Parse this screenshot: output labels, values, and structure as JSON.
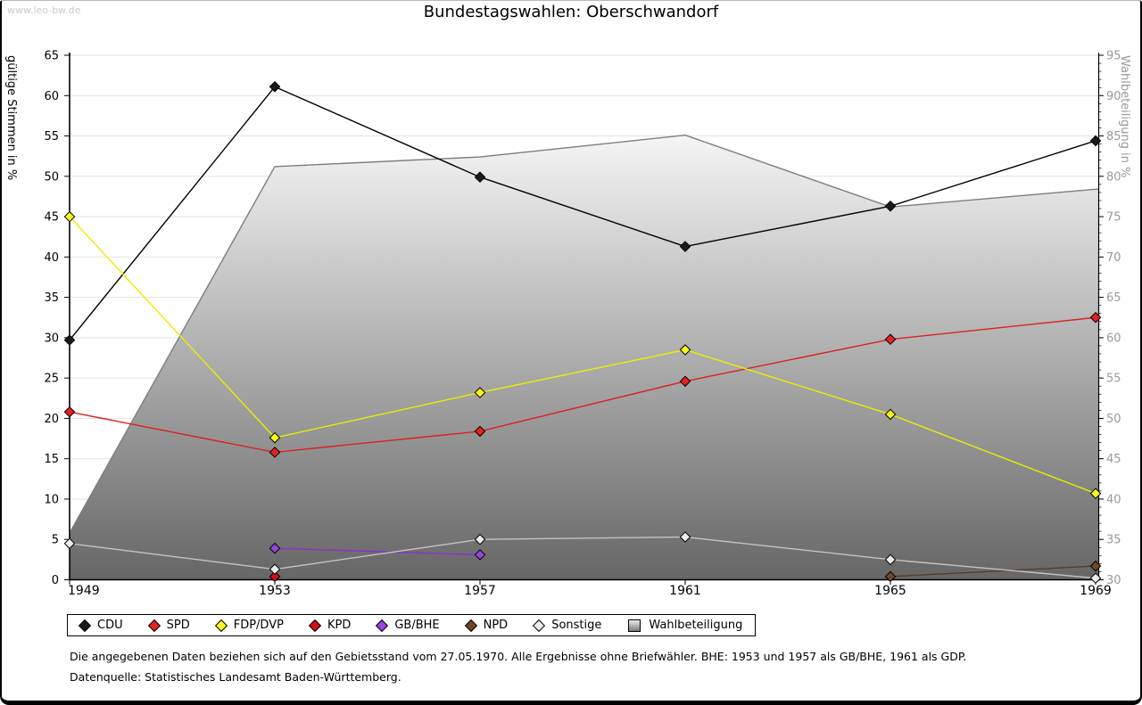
{
  "watermark": "www.leo-bw.de",
  "title": "Bundestagswahlen: Oberschwandorf",
  "footnotes": [
    "Die angegebenen Daten beziehen sich auf den Gebietsstand vom 27.05.1970. Alle Ergebnisse ohne Briefwähler. BHE: 1953 und 1957 als GB/BHE, 1961 als GDP.",
    "Datenquelle: Statistisches Landesamt Baden-Württemberg."
  ],
  "chart_data": {
    "type": "line",
    "title": "Bundestagswahlen: Oberschwandorf",
    "categories": [
      1949,
      1953,
      1957,
      1961,
      1965,
      1969
    ],
    "left_axis": {
      "label": "gültige Stimmen in %",
      "min": 0,
      "max": 65,
      "step": 5
    },
    "right_axis": {
      "label": "Wahlbeteiligung in %",
      "min": 30,
      "max": 95,
      "step": 5
    },
    "grid": "horizontal",
    "legend_position": "bottom",
    "series": [
      {
        "name": "CDU",
        "axis": "left",
        "color": "#000000",
        "fill": "#1a1a1a",
        "values": [
          29.7,
          61.1,
          49.9,
          41.3,
          46.3,
          54.4
        ]
      },
      {
        "name": "SPD",
        "axis": "left",
        "color": "#dd2020",
        "fill": "#e32222",
        "values": [
          20.8,
          15.8,
          18.4,
          24.6,
          29.8,
          32.5
        ]
      },
      {
        "name": "FDP/DVP",
        "axis": "left",
        "color": "#eded00",
        "fill": "#f7f720",
        "values": [
          45.0,
          17.6,
          23.2,
          28.5,
          20.5,
          10.7
        ]
      },
      {
        "name": "KPD",
        "axis": "left",
        "color": "#bb0000",
        "fill": "#cc1111",
        "values": [
          null,
          0.4,
          null,
          null,
          null,
          null
        ]
      },
      {
        "name": "GB/BHE",
        "axis": "left",
        "color": "#8833cc",
        "fill": "#9944dd",
        "values": [
          null,
          3.9,
          3.1,
          null,
          null,
          null
        ]
      },
      {
        "name": "NPD",
        "axis": "left",
        "color": "#5e3a20",
        "fill": "#6e4828",
        "values": [
          null,
          null,
          null,
          null,
          0.4,
          1.7
        ]
      },
      {
        "name": "Sonstige",
        "axis": "left",
        "color": "#c4c4c4",
        "fill": "#ececec",
        "values": [
          4.5,
          1.3,
          5.0,
          5.3,
          2.5,
          0.2
        ]
      }
    ],
    "area_series": {
      "name": "Wahlbeteiligung",
      "axis": "right",
      "stroke": "#7d7d7d",
      "gradient_top": "#f5f5f5",
      "gradient_bottom": "#666666",
      "values": [
        35.8,
        81.2,
        82.4,
        85.1,
        76.2,
        78.4
      ]
    }
  }
}
